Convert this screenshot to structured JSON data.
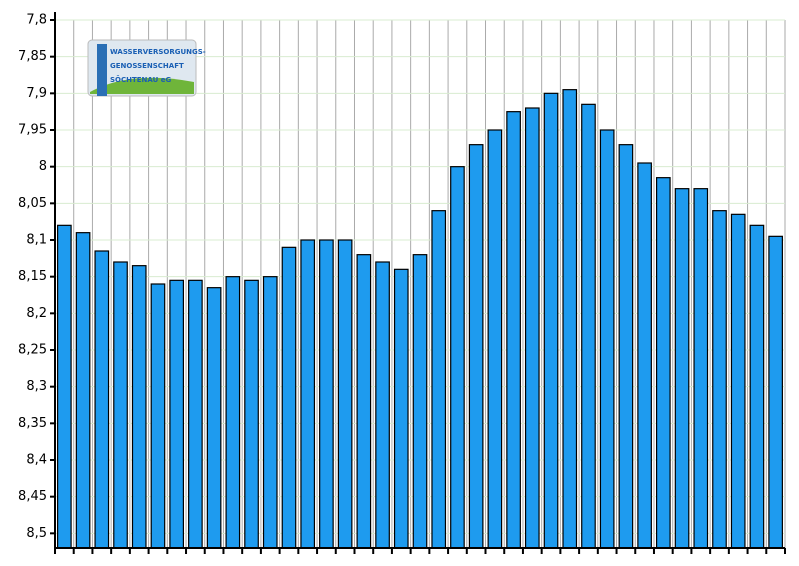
{
  "chart_data": {
    "type": "bar",
    "logo_text": [
      "WASSERVERSORGUNGS-",
      "GENOSSENSCHAFT",
      "SÖCHTENAU eG"
    ],
    "categories": [
      null,
      null,
      null,
      null,
      null,
      null,
      null,
      null,
      null,
      null,
      null,
      null,
      null,
      null,
      null,
      null,
      null,
      null,
      null,
      null,
      null,
      null,
      null,
      null,
      null,
      null,
      null,
      null,
      null,
      null,
      null,
      null,
      null,
      null,
      null,
      null,
      null,
      null,
      null
    ],
    "values": [
      8.08,
      8.09,
      8.115,
      8.13,
      8.135,
      8.16,
      8.155,
      8.155,
      8.165,
      8.15,
      8.155,
      8.15,
      8.11,
      8.1,
      8.1,
      8.1,
      8.12,
      8.13,
      8.14,
      8.12,
      8.06,
      8.0,
      7.97,
      7.95,
      7.925,
      7.92,
      7.9,
      7.895,
      7.915,
      7.95,
      7.97,
      7.995,
      8.015,
      8.03,
      8.03,
      8.06,
      8.065,
      8.08,
      8.095
    ],
    "color": "#1e9bef",
    "ylim": [
      8.52,
      7.8
    ],
    "yticks": [
      {
        "value": 7.8,
        "label": "7,8"
      },
      {
        "value": 7.85,
        "label": "7,85"
      },
      {
        "value": 7.9,
        "label": "7,9"
      },
      {
        "value": 7.95,
        "label": "7,95"
      },
      {
        "value": 8,
        "label": "8"
      },
      {
        "value": 8.05,
        "label": "8,05"
      },
      {
        "value": 8.1,
        "label": "8,1"
      },
      {
        "value": 8.15,
        "label": "8,15"
      },
      {
        "value": 8.2,
        "label": "8,2"
      },
      {
        "value": 8.25,
        "label": "8,25"
      },
      {
        "value": 8.3,
        "label": "8,3"
      },
      {
        "value": 8.35,
        "label": "8,35"
      },
      {
        "value": 8.4,
        "label": "8,4"
      },
      {
        "value": 8.45,
        "label": "8,45"
      },
      {
        "value": 8.5,
        "label": "8,5"
      }
    ],
    "grid": true
  }
}
